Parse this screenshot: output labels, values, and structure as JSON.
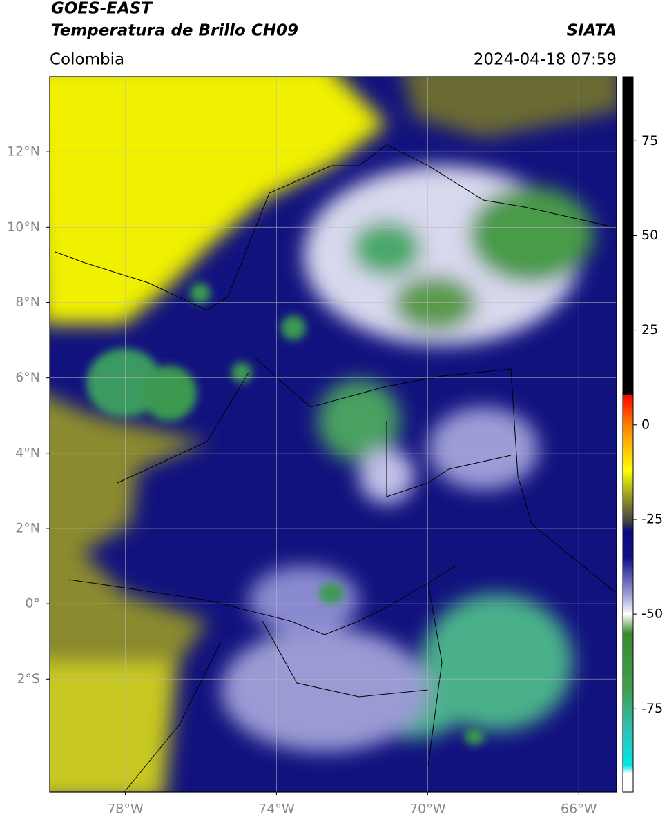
{
  "chart_data": {
    "type": "map",
    "title": "GOES-EAST",
    "subtitle": "Temperatura de Brillo CH09",
    "source": "SIATA",
    "region": "Colombia",
    "datetime": "2024-04-18 07:59",
    "xlim": [
      -80,
      -65
    ],
    "ylim": [
      -5,
      14
    ],
    "xticks": [
      {
        "value": -78,
        "label": "78°W"
      },
      {
        "value": -74,
        "label": "74°W"
      },
      {
        "value": -70,
        "label": "70°W"
      },
      {
        "value": -66,
        "label": "66°W"
      }
    ],
    "yticks": [
      {
        "value": 12,
        "label": "12°N"
      },
      {
        "value": 10,
        "label": "10°N"
      },
      {
        "value": 8,
        "label": "8°N"
      },
      {
        "value": 6,
        "label": "6°N"
      },
      {
        "value": 4,
        "label": "4°N"
      },
      {
        "value": 2,
        "label": "2°N"
      },
      {
        "value": 0,
        "label": "0°"
      },
      {
        "value": -2,
        "label": "2°S"
      }
    ],
    "grid": true,
    "colorbar": {
      "lim": [
        -97,
        92
      ],
      "ticks": [
        75,
        50,
        25,
        0,
        -25,
        -50,
        -75
      ],
      "stops": [
        {
          "value": 92,
          "color": "#000000"
        },
        {
          "value": 8,
          "color": "#000000"
        },
        {
          "value": 8,
          "color": "#ff0000"
        },
        {
          "value": 0,
          "color": "#ff8000"
        },
        {
          "value": -12,
          "color": "#ffff00"
        },
        {
          "value": -20,
          "color": "#8a8a2a"
        },
        {
          "value": -26,
          "color": "#3a3a4a"
        },
        {
          "value": -28,
          "color": "#0a0a80"
        },
        {
          "value": -35,
          "color": "#10108a"
        },
        {
          "value": -45,
          "color": "#a0a0d8"
        },
        {
          "value": -50,
          "color": "#ffffff"
        },
        {
          "value": -55,
          "color": "#3a8a2a"
        },
        {
          "value": -70,
          "color": "#40a050"
        },
        {
          "value": -80,
          "color": "#30c0b0"
        },
        {
          "value": -90,
          "color": "#00e8e8"
        },
        {
          "value": -92,
          "color": "#ffffff"
        },
        {
          "value": -97,
          "color": "#ffffff"
        }
      ]
    }
  }
}
